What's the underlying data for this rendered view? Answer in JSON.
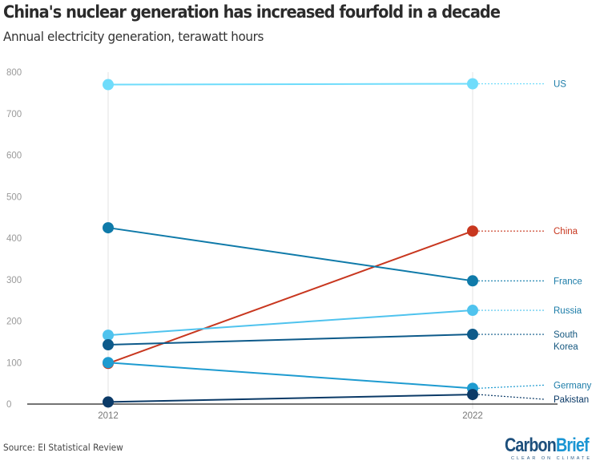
{
  "header": {
    "title": "China's nuclear generation has increased fourfold in a decade",
    "subtitle": "Annual electricity generation, terawatt hours"
  },
  "footer": {
    "source": "Source: EI Statistical Review",
    "logo_part1": "Carbon",
    "logo_part2": "Brief",
    "logo_tagline": "CLEAR ON CLIMATE"
  },
  "chart_data": {
    "type": "line",
    "subtype": "slope",
    "title": "China's nuclear generation has increased fourfold in a decade",
    "subtitle": "Annual electricity generation, terawatt hours",
    "xlabel": "",
    "ylabel": "",
    "x": [
      "2012",
      "2022"
    ],
    "ylim": [
      0,
      800
    ],
    "yticks": [
      0,
      100,
      200,
      300,
      400,
      500,
      600,
      700,
      800
    ],
    "grid": "vertical lines at each year",
    "legend": "direct labels on right",
    "series": [
      {
        "name": "US",
        "values": [
          770,
          772
        ],
        "color": "#6fdcfb",
        "label_color": "#1b7ca8"
      },
      {
        "name": "China",
        "values": [
          98,
          417
        ],
        "color": "#c8371f",
        "label_color": "#c8371f"
      },
      {
        "name": "France",
        "values": [
          425,
          297
        ],
        "color": "#0f7aa9",
        "label_color": "#1b7ca8"
      },
      {
        "name": "Russia",
        "values": [
          166,
          226
        ],
        "color": "#4fc3ee",
        "label_color": "#1b7ca8"
      },
      {
        "name": "South Korea",
        "label_lines": [
          "South",
          "Korea"
        ],
        "values": [
          143,
          168
        ],
        "color": "#0d5a8a",
        "label_color": "#14577f"
      },
      {
        "name": "Germany",
        "values": [
          100,
          38
        ],
        "color": "#1e9bd0",
        "label_color": "#1b7ca8"
      },
      {
        "name": "Pakistan",
        "values": [
          5,
          23
        ],
        "color": "#0b3a67",
        "label_color": "#0b3a67"
      }
    ]
  }
}
